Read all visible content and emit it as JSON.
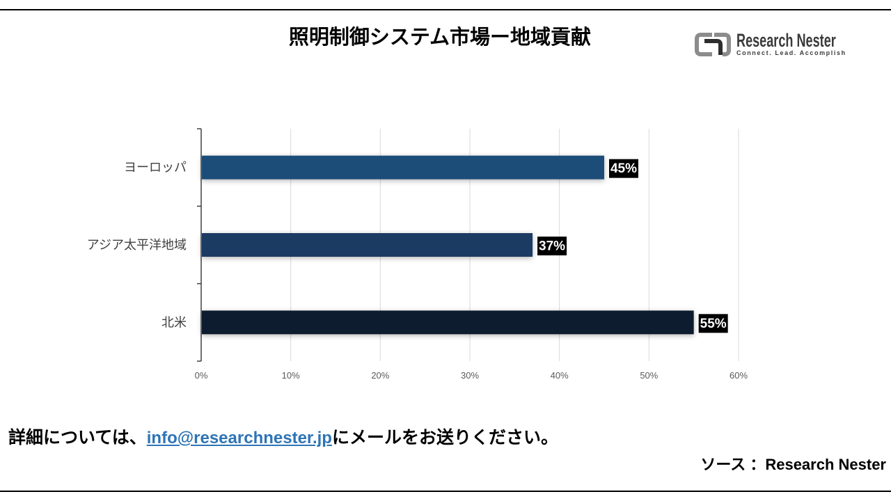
{
  "chart_data": {
    "type": "bar",
    "orientation": "horizontal",
    "title": "照明制御システム市場ー地域貢献",
    "categories": [
      "ヨーロッパ",
      "アジア太平洋地域",
      "北米"
    ],
    "values": [
      45,
      37,
      55
    ],
    "data_labels": [
      "45%",
      "37%",
      "55%"
    ],
    "bar_colors": [
      "#1f4e79",
      "#1f3b63",
      "#0f1e2d"
    ],
    "xlim": [
      0,
      60
    ],
    "x_ticks": [
      0,
      10,
      20,
      30,
      40,
      50,
      60
    ],
    "x_tick_labels": [
      "0%",
      "10%",
      "20%",
      "30%",
      "40%",
      "50%",
      "60%"
    ],
    "grid": "vertical",
    "legend": "none"
  },
  "logo": {
    "name": "Research Nester",
    "tagline": "Connect. Lead. Accomplish"
  },
  "footer": {
    "contact": {
      "prefix": "詳細については、",
      "email": "info@researchnester.jp",
      "suffix": "にメールをお送りください。"
    },
    "source": "ソース ：Research Nester"
  },
  "colors": {
    "link": "#2e74b5",
    "rule": "#000000",
    "gridline": "#d9d9d9",
    "data_label_bg": "#000000",
    "data_label_text": "#ffffff"
  }
}
